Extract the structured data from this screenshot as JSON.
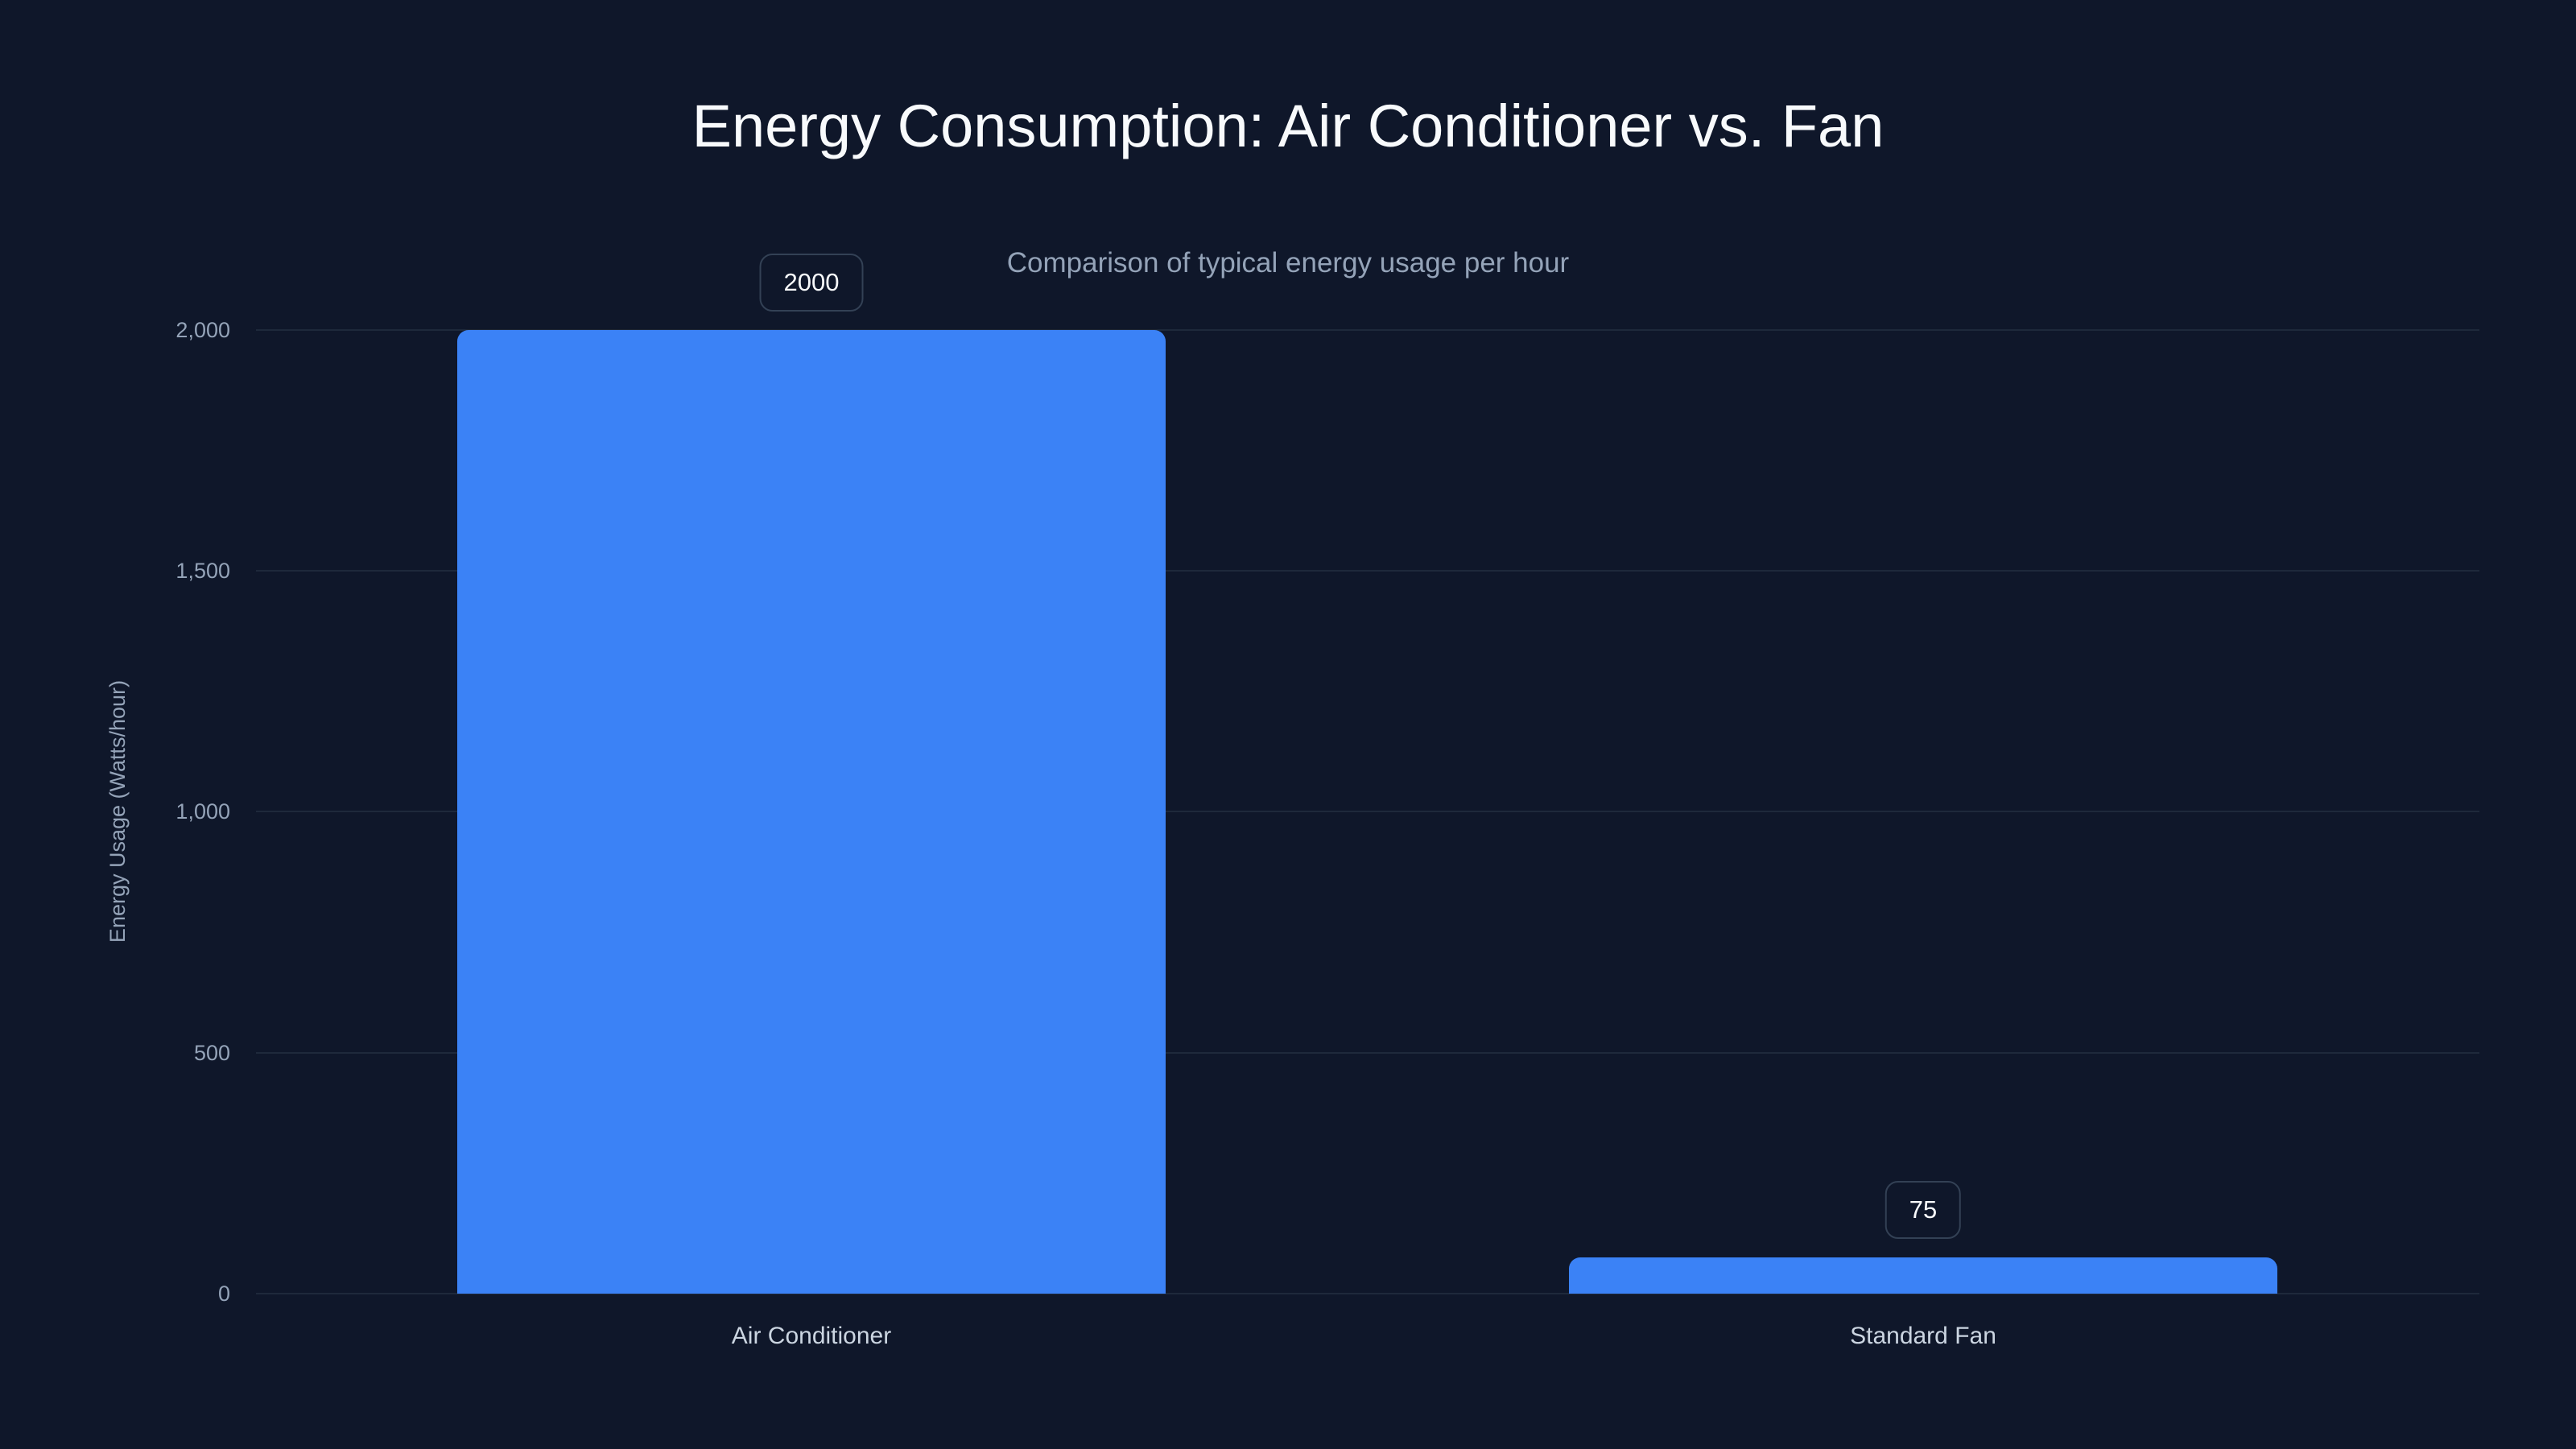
{
  "colors": {
    "background": "#0f172a",
    "bar": "#3b82f6",
    "gridline": "#1e293b",
    "title": "#f8fafc",
    "muted_text": "#94a3b8",
    "label_border": "#334155"
  },
  "chart_data": {
    "type": "bar",
    "title": "Energy Consumption: Air Conditioner vs. Fan",
    "subtitle": "Comparison of typical energy usage per hour",
    "xlabel": "",
    "ylabel": "Energy Usage (Watts/hour)",
    "categories": [
      "Air Conditioner",
      "Standard Fan"
    ],
    "values": [
      2000,
      75
    ],
    "data_labels": [
      "2000",
      "75"
    ],
    "ylim": [
      0,
      2000
    ],
    "yticks": [
      0,
      500,
      1000,
      1500,
      2000
    ],
    "ytick_labels": [
      "0",
      "500",
      "1,000",
      "1,500",
      "2,000"
    ],
    "grid": true,
    "legend": null
  }
}
